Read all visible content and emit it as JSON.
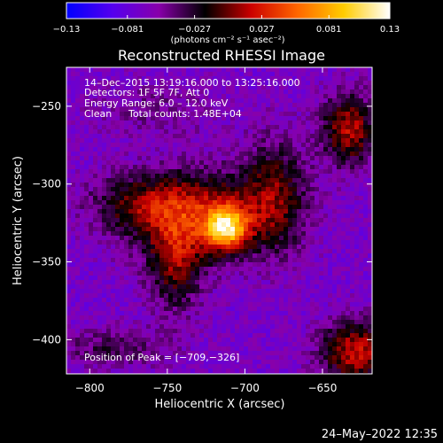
{
  "chart_data": {
    "type": "heatmap",
    "title": "Reconstructed RHESSI Image",
    "xlabel": "Heliocentric X (arcsec)",
    "ylabel": "Heliocentric Y (arcsec)",
    "xlim": [
      -815,
      -618
    ],
    "ylim": [
      -422,
      -225
    ],
    "xticks": [
      {
        "value": -800,
        "label": "−800"
      },
      {
        "value": -750,
        "label": "−750"
      },
      {
        "value": -700,
        "label": "−700"
      },
      {
        "value": -650,
        "label": "−650"
      }
    ],
    "yticks": [
      {
        "value": -250,
        "label": "−250"
      },
      {
        "value": -300,
        "label": "−300"
      },
      {
        "value": -350,
        "label": "−350"
      },
      {
        "value": -400,
        "label": "−400"
      }
    ],
    "colorbar": {
      "range": [
        -0.13,
        0.13
      ],
      "unit_label": "(photons cm⁻² s⁻¹ asec⁻²)",
      "ticks": [
        {
          "value": -0.13,
          "label": "−0.13"
        },
        {
          "value": -0.081,
          "label": "−0.081"
        },
        {
          "value": -0.027,
          "label": "−0.027"
        },
        {
          "value": 0.027,
          "label": "0.027"
        },
        {
          "value": 0.081,
          "label": "0.081"
        },
        {
          "value": 0.13,
          "label": "0.13"
        }
      ],
      "colors": [
        "#0000ff",
        "#5500ee",
        "#8800aa",
        "#000000",
        "#cc0000",
        "#ff6600",
        "#ffcc00",
        "#ffffff"
      ]
    },
    "annotations": {
      "time_range": "14–Dec–2015 13:19:16.000 to 13:25:16.000",
      "detectors": "Detectors: 1F 5F 7F, Att 0",
      "energy": "Energy Range: 6.0 – 12.0 keV",
      "clean": "Clean",
      "counts": "Total counts: 1.48E+04",
      "peak": "Position of Peak = [−709,−326]"
    },
    "peak_position": [
      -709,
      -326
    ],
    "sources": [
      {
        "x": -712,
        "y": -328,
        "amplitude": 0.13,
        "sx": 9,
        "sy": 9
      },
      {
        "x": -728,
        "y": -320,
        "amplitude": 0.085,
        "sx": 32,
        "sy": 20
      },
      {
        "x": -770,
        "y": -312,
        "amplitude": 0.045,
        "sx": 22,
        "sy": 12
      },
      {
        "x": -745,
        "y": -352,
        "amplitude": 0.06,
        "sx": 12,
        "sy": 22
      },
      {
        "x": -680,
        "y": -305,
        "amplitude": 0.055,
        "sx": 14,
        "sy": 26
      },
      {
        "x": -633,
        "y": -265,
        "amplitude": 0.085,
        "sx": 12,
        "sy": 16
      },
      {
        "x": -628,
        "y": -408,
        "amplitude": 0.09,
        "sx": 16,
        "sy": 14
      },
      {
        "x": -785,
        "y": -405,
        "amplitude": 0.035,
        "sx": 26,
        "sy": 9
      },
      {
        "x": -760,
        "y": -252,
        "amplitude": 0.02,
        "sx": 30,
        "sy": 12
      }
    ],
    "background": -0.07
  },
  "footer": {
    "date": "24–May–2022 12:35"
  }
}
